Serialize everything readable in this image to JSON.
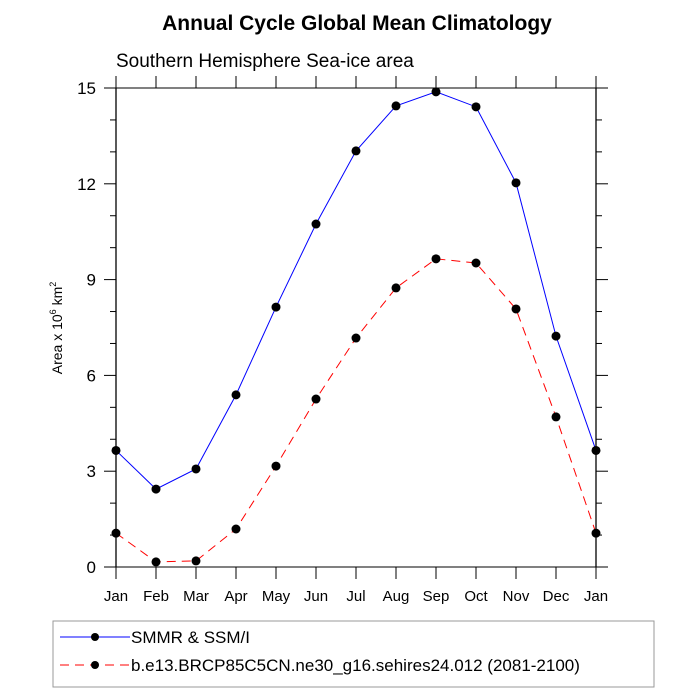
{
  "chart_data": {
    "type": "line",
    "title": "Annual Cycle Global Mean Climatology",
    "subtitle": "Southern Hemisphere Sea-ice area",
    "xlabel": "",
    "ylabel": "Area x 10",
    "ylabel_superscript_1": "6",
    "ylabel_unit": " km",
    "ylabel_superscript_2": "2",
    "categories": [
      "Jan",
      "Feb",
      "Mar",
      "Apr",
      "May",
      "Jun",
      "Jul",
      "Aug",
      "Sep",
      "Oct",
      "Nov",
      "Dec",
      "Jan"
    ],
    "ylim": [
      0,
      15
    ],
    "yticks": [
      0,
      3,
      6,
      9,
      12,
      15
    ],
    "yticks_minor_step": 1,
    "grid": false,
    "legend_position": "bottom",
    "series": [
      {
        "name": "SMMR & SSM/I",
        "color": "#0000ff",
        "dash": "solid",
        "values": [
          3.65,
          2.44,
          3.07,
          5.39,
          8.14,
          10.74,
          13.03,
          14.44,
          14.88,
          14.41,
          12.03,
          7.23,
          3.65
        ]
      },
      {
        "name": "b.e13.BRCP85C5CN.ne30_g16.sehires24.012 (2081-2100)",
        "color": "#ff0000",
        "dash": "dashed",
        "values": [
          1.06,
          0.16,
          0.19,
          1.19,
          3.16,
          5.26,
          7.17,
          8.74,
          9.65,
          9.52,
          8.08,
          4.7,
          1.06
        ]
      }
    ],
    "marker_color": "#000000"
  }
}
